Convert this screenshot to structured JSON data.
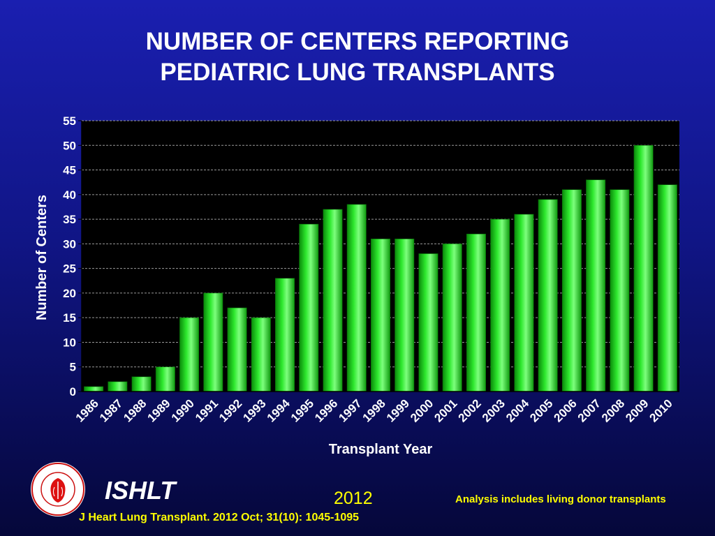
{
  "slide": {
    "title_line1": "NUMBER OF CENTERS REPORTING",
    "title_line2": "PEDIATRIC LUNG TRANSPLANTS",
    "org": "ISHLT",
    "year": "2012",
    "note": "Analysis includes living donor transplants",
    "citation": "J Heart Lung Transplant.  2012 Oct; 31(10): 1045-1095",
    "logo_text": "INTERNATIONAL SOCIETY FOR HEART & LUNG TRANSPLANTATION"
  },
  "colors": {
    "bar": "#22dd22",
    "plot_bg": "#000000",
    "text": "#ffffff",
    "footer": "#ffff00"
  },
  "chart_data": {
    "type": "bar",
    "categories": [
      "1986",
      "1987",
      "1988",
      "1989",
      "1990",
      "1991",
      "1992",
      "1993",
      "1994",
      "1995",
      "1996",
      "1997",
      "1998",
      "1999",
      "2000",
      "2001",
      "2002",
      "2003",
      "2004",
      "2005",
      "2006",
      "2007",
      "2008",
      "2009",
      "2010"
    ],
    "values": [
      1,
      2,
      3,
      5,
      15,
      20,
      17,
      15,
      23,
      34,
      37,
      38,
      31,
      31,
      28,
      30,
      32,
      35,
      36,
      39,
      41,
      43,
      41,
      50,
      42
    ],
    "xlabel": "Transplant Year",
    "ylabel": "Number of Centers",
    "ylim": [
      0,
      55
    ],
    "yticks": [
      0,
      5,
      10,
      15,
      20,
      25,
      30,
      35,
      40,
      45,
      50,
      55
    ],
    "grid": true
  }
}
